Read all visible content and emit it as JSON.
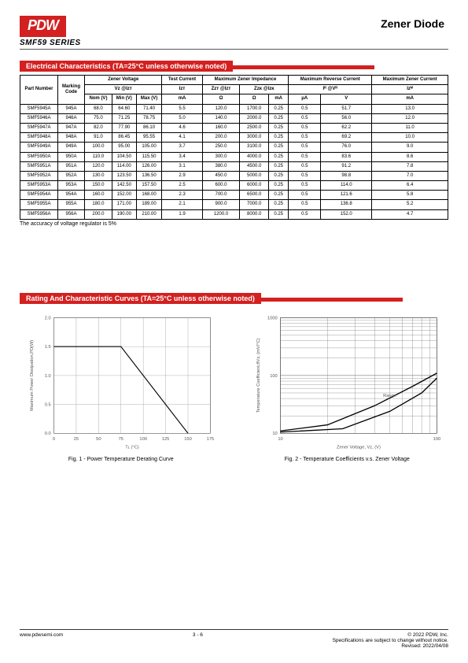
{
  "header": {
    "logo": "PDW",
    "title": "Zener Diode",
    "series": "SMF59 SERIES"
  },
  "sections": {
    "elec": "Electrical Characteristics (TA=25°C unless otherwise noted)",
    "curves": "Rating And Characteristic Curves (TA=25°C unless otherwise noted)"
  },
  "table": {
    "top_headers": {
      "part": "Part Number",
      "mark": "Marking Code",
      "zv": "Zener Voltage",
      "test": "Test Current",
      "imp": "Maximum Zener Impedance",
      "rev": "Maximum Reverse Current",
      "maxz": "Maximum Zener Current"
    },
    "sub_headers": {
      "vz": "Vz @Iᴢᴛ",
      "izt": "Iᴢᴛ",
      "zzt": "Zᴢᴛ @Iᴢᴛ",
      "zzk": "Zᴢᴋ @Iᴢᴋ",
      "ir": "Iᴿ @Vᴿ",
      "izm": "Iᴢᴹ"
    },
    "col_units": [
      "Nom (V)",
      "Min (V)",
      "Max (V)",
      "mA",
      "Ω",
      "Ω",
      "mA",
      "μA",
      "V",
      "mA"
    ],
    "rows": [
      [
        "SMF5945A",
        "945A",
        "68.0",
        "64.60",
        "71.40",
        "5.5",
        "120.0",
        "1700.0",
        "0.25",
        "0.5",
        "51.7",
        "13.0"
      ],
      [
        "SMF5946A",
        "946A",
        "75.0",
        "71.25",
        "78.75",
        "5.0",
        "140.0",
        "2000.0",
        "0.25",
        "0.5",
        "56.0",
        "12.0"
      ],
      [
        "SMF5947A",
        "947A",
        "82.0",
        "77.90",
        "86.10",
        "4.6",
        "160.0",
        "2500.0",
        "0.25",
        "0.5",
        "62.2",
        "11.0"
      ],
      [
        "SMF5948A",
        "948A",
        "91.0",
        "86.45",
        "95.55",
        "4.1",
        "200.0",
        "3000.0",
        "0.25",
        "0.5",
        "69.2",
        "10.0"
      ],
      [
        "SMF5949A",
        "949A",
        "100.0",
        "95.00",
        "105.00",
        "3.7",
        "250.0",
        "3100.0",
        "0.25",
        "0.5",
        "76.0",
        "9.0"
      ],
      [
        "SMF5950A",
        "950A",
        "110.0",
        "104.50",
        "115.50",
        "3.4",
        "300.0",
        "4000.0",
        "0.25",
        "0.5",
        "83.6",
        "8.6"
      ],
      [
        "SMF5951A",
        "951A",
        "120.0",
        "114.00",
        "126.00",
        "3.1",
        "380.0",
        "4500.0",
        "0.25",
        "0.5",
        "91.2",
        "7.8"
      ],
      [
        "SMF5952A",
        "952A",
        "130.0",
        "123.50",
        "136.50",
        "2.9",
        "450.0",
        "5000.0",
        "0.25",
        "0.5",
        "98.8",
        "7.0"
      ],
      [
        "SMF5953A",
        "953A",
        "150.0",
        "142.50",
        "157.50",
        "2.5",
        "600.0",
        "6000.0",
        "0.25",
        "0.5",
        "114.0",
        "6.4"
      ],
      [
        "SMF5954A",
        "954A",
        "160.0",
        "152.00",
        "168.00",
        "2.3",
        "700.0",
        "6500.0",
        "0.25",
        "0.5",
        "121.6",
        "5.8"
      ],
      [
        "SMF5955A",
        "955A",
        "180.0",
        "171.00",
        "189.00",
        "2.1",
        "900.0",
        "7000.0",
        "0.25",
        "0.5",
        "136.8",
        "5.2"
      ],
      [
        "SMF5956A",
        "956A",
        "200.0",
        "190.00",
        "210.00",
        "1.9",
        "1200.0",
        "8000.0",
        "0.25",
        "0.5",
        "152.0",
        "4.7"
      ]
    ],
    "note": "The accuracy of voltage regulator is 5%"
  },
  "chart1": {
    "type": "line",
    "title": "Fig. 1 - Power Temperature Derating Curve",
    "xlabel": "Tʟ  (°C)",
    "ylabel": "Maximum Power Dissipation,PD(W)",
    "xlim": [
      0,
      175
    ],
    "xtick_step": 25,
    "ylim": [
      0,
      2.0
    ],
    "ytick_step": 0.5,
    "line_color": "#000000",
    "grid_color": "#999999",
    "points": [
      [
        0,
        1.5
      ],
      [
        75,
        1.5
      ],
      [
        150,
        0
      ]
    ]
  },
  "chart2": {
    "type": "line-log",
    "title": "Fig. 2 - Temperature Coefficients v.s. Zener Voltage",
    "xlabel": "Zener Voltage, Vᴢ, (V)",
    "ylabel": "Temperature Coefficient,θVᴢ, (mV/°C)",
    "xlim": [
      10,
      100
    ],
    "ylim": [
      10,
      1000
    ],
    "range_label": "Range",
    "line_color": "#000000",
    "grid_color": "#555555",
    "upper_points": [
      [
        10,
        11
      ],
      [
        20,
        14
      ],
      [
        40,
        30
      ],
      [
        70,
        65
      ],
      [
        100,
        110
      ]
    ],
    "lower_points": [
      [
        10,
        10.5
      ],
      [
        25,
        12
      ],
      [
        50,
        24
      ],
      [
        80,
        50
      ],
      [
        100,
        90
      ]
    ]
  },
  "footer": {
    "url": "www.pdwsemi.com",
    "page": "3 - 6",
    "copyright": "© 2022 PDW, Inc.",
    "note1": "Specifications are subject to change without notice.",
    "note2": "Revised: 2022/04/08"
  }
}
